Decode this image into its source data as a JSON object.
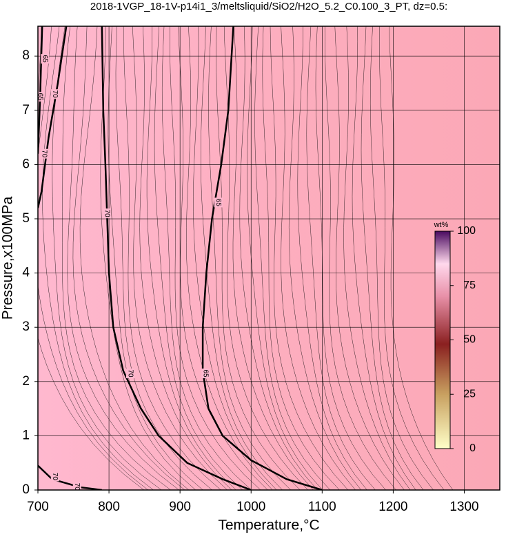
{
  "chart_data": {
    "type": "contour",
    "title": "2018-1VGP_18-1V-p14i1_3/meltsliquid/SiO2/H2O_5.2_C0.100_3_PT, dz=0.5:",
    "x_label": "Temperature,°C",
    "y_label": "Pressure,x100MPa",
    "xlim": [
      700,
      1350
    ],
    "ylim": [
      0,
      8.55
    ],
    "xticks": [
      700,
      800,
      900,
      1000,
      1100,
      1200,
      1300
    ],
    "yticks": [
      0,
      1,
      2,
      3,
      4,
      5,
      6,
      7,
      8
    ],
    "grid": true,
    "contours": [
      {
        "level": 70,
        "x": [
          790,
          792,
          795,
          797,
          800,
          806,
          820,
          845,
          870,
          910,
          960,
          1000
        ],
        "y": [
          8.55,
          7,
          6,
          5.2,
          4,
          3,
          2.2,
          1.5,
          1.0,
          0.5,
          0.2,
          0
        ]
      },
      {
        "level": 65,
        "x": [
          975,
          968,
          958,
          945,
          937,
          932,
          932,
          940,
          960,
          1000,
          1050,
          1100
        ],
        "y": [
          8.55,
          7,
          6,
          5,
          4,
          3,
          2.2,
          1.5,
          1.0,
          0.55,
          0.2,
          0
        ]
      },
      {
        "level": 70,
        "x": [
          740,
          728,
          715,
          705,
          700
        ],
        "y": [
          8.55,
          7.5,
          6.5,
          5.5,
          5.2
        ]
      },
      {
        "level": 65,
        "x": [
          706,
          703,
          700
        ],
        "y": [
          8.55,
          7.2,
          6.2
        ]
      },
      {
        "level": 70,
        "x": [
          700,
          720,
          760,
          790
        ],
        "y": [
          0.45,
          0.2,
          0.05,
          0
        ]
      }
    ],
    "contour_labels": [
      {
        "text": "65",
        "x": 710,
        "y": 7.95
      },
      {
        "text": "65",
        "x": 703,
        "y": 7.25
      },
      {
        "text": "70",
        "x": 724,
        "y": 7.3
      },
      {
        "text": "70",
        "x": 709,
        "y": 6.2
      },
      {
        "text": "70",
        "x": 797,
        "y": 5.1
      },
      {
        "text": "65",
        "x": 954,
        "y": 5.3
      },
      {
        "text": "70",
        "x": 830,
        "y": 2.15
      },
      {
        "text": "65",
        "x": 936,
        "y": 2.15
      },
      {
        "text": "70",
        "x": 724,
        "y": 0.25
      },
      {
        "text": "70",
        "x": 755,
        "y": 0.06
      }
    ],
    "colorbar": {
      "label": "wt%",
      "lim": [
        0,
        100
      ],
      "ticks": [
        0,
        25,
        50,
        75,
        100
      ]
    }
  }
}
